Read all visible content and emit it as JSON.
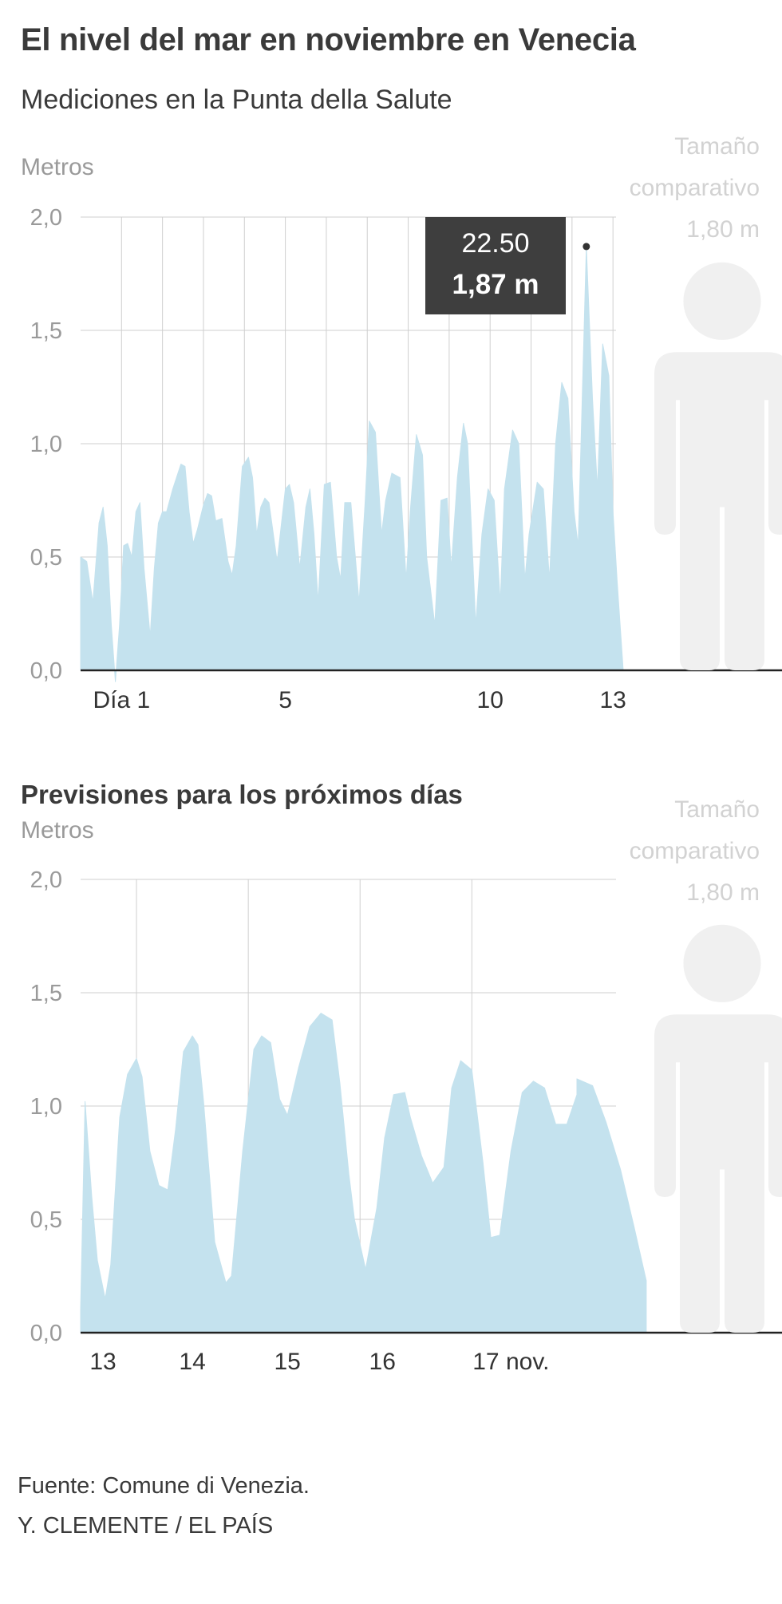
{
  "header": {
    "title": "El nivel del mar en noviembre en Venecia",
    "subtitle": "Mediciones en la Punta della Salute"
  },
  "colors": {
    "area": "#c4e2ee",
    "grid": "#cfcfcf",
    "axis": "#222222",
    "tick_text": "#9a9a9a",
    "x_text": "#333333",
    "silhouette": "#f0f0f0",
    "silhouette_text": "#d2d2d2",
    "tooltip_bg": "#3e3e3e",
    "tooltip_text": "#ffffff"
  },
  "icons": {
    "person": "person-silhouette-icon"
  },
  "chart_data": [
    {
      "type": "area",
      "ylabel": "Metros",
      "ylim": [
        0,
        2
      ],
      "xlim": [
        0,
        13.25
      ],
      "grid": true,
      "y_ticks": [
        {
          "value": 0,
          "label": "0,0"
        },
        {
          "value": 0.5,
          "label": "0,5"
        },
        {
          "value": 1,
          "label": "1,0"
        },
        {
          "value": 1.5,
          "label": "1,5"
        },
        {
          "value": 2,
          "label": "2,0"
        }
      ],
      "x_ticks": [
        {
          "value": 1,
          "label": "Día 1"
        },
        {
          "value": 5,
          "label": "5"
        },
        {
          "value": 10,
          "label": "10"
        },
        {
          "value": 13,
          "label": "13"
        }
      ],
      "x_gridlines": [
        1,
        2,
        3,
        4,
        5,
        6,
        7,
        8,
        9,
        10,
        11,
        12,
        13
      ],
      "x": [
        0.0,
        0.15,
        0.3,
        0.45,
        0.55,
        0.65,
        0.75,
        0.85,
        0.95,
        1.05,
        1.15,
        1.25,
        1.35,
        1.45,
        1.55,
        1.7,
        1.8,
        1.9,
        2.0,
        2.1,
        2.25,
        2.45,
        2.55,
        2.65,
        2.75,
        2.85,
        3.0,
        3.1,
        3.2,
        3.3,
        3.45,
        3.6,
        3.7,
        3.8,
        3.95,
        4.1,
        4.2,
        4.3,
        4.4,
        4.5,
        4.6,
        4.8,
        5.0,
        5.1,
        5.2,
        5.35,
        5.5,
        5.6,
        5.7,
        5.8,
        5.95,
        6.1,
        6.25,
        6.35,
        6.45,
        6.6,
        6.8,
        6.95,
        7.05,
        7.2,
        7.35,
        7.45,
        7.6,
        7.8,
        7.95,
        8.05,
        8.2,
        8.35,
        8.45,
        8.65,
        8.8,
        8.95,
        9.05,
        9.2,
        9.35,
        9.45,
        9.65,
        9.8,
        9.95,
        10.1,
        10.25,
        10.35,
        10.55,
        10.7,
        10.85,
        10.95,
        11.15,
        11.3,
        11.45,
        11.6,
        11.75,
        11.9,
        12.05,
        12.15,
        12.22,
        12.35,
        12.5,
        12.62,
        12.75,
        12.9,
        13.0,
        13.1,
        13.25
      ],
      "values": [
        0.5,
        0.48,
        0.3,
        0.65,
        0.72,
        0.55,
        0.2,
        -0.05,
        0.2,
        0.55,
        0.56,
        0.5,
        0.7,
        0.74,
        0.45,
        0.15,
        0.45,
        0.65,
        0.7,
        0.7,
        0.8,
        0.91,
        0.9,
        0.7,
        0.56,
        0.62,
        0.73,
        0.78,
        0.77,
        0.66,
        0.67,
        0.48,
        0.42,
        0.55,
        0.9,
        0.94,
        0.85,
        0.6,
        0.72,
        0.76,
        0.74,
        0.48,
        0.8,
        0.82,
        0.74,
        0.45,
        0.72,
        0.8,
        0.6,
        0.3,
        0.82,
        0.83,
        0.5,
        0.4,
        0.74,
        0.74,
        0.3,
        0.75,
        1.1,
        1.05,
        0.6,
        0.75,
        0.87,
        0.85,
        0.4,
        0.7,
        1.04,
        0.95,
        0.5,
        0.2,
        0.75,
        0.76,
        0.45,
        0.85,
        1.09,
        1.0,
        0.2,
        0.6,
        0.8,
        0.75,
        0.3,
        0.8,
        1.06,
        1.0,
        0.4,
        0.6,
        0.83,
        0.8,
        0.4,
        1.0,
        1.27,
        1.2,
        0.7,
        0.55,
        1.0,
        1.87,
        1.2,
        0.8,
        1.44,
        1.3,
        0.7,
        0.4,
        0.0
      ],
      "highlight": {
        "x": 12.35,
        "value": 1.87,
        "time": "22.50",
        "label": "1,87 m"
      },
      "comparison": {
        "label_line1": "Tamaño",
        "label_line2": "comparativo",
        "label_line3": "1,80 m",
        "height_m": 1.8
      }
    },
    {
      "type": "area",
      "title": "Previsiones para los próximos días",
      "ylabel": "Metros",
      "ylim": [
        0,
        2
      ],
      "xlim": [
        13,
        17.45
      ],
      "grid": true,
      "y_ticks": [
        {
          "value": 0,
          "label": "0,0"
        },
        {
          "value": 0.5,
          "label": "0,5"
        },
        {
          "value": 1,
          "label": "1,0"
        },
        {
          "value": 1.5,
          "label": "1,5"
        },
        {
          "value": 2,
          "label": "2,0"
        }
      ],
      "x_ticks": [
        {
          "value": 13.2,
          "label": "13"
        },
        {
          "value": 14.0,
          "label": "14"
        },
        {
          "value": 14.85,
          "label": "15"
        },
        {
          "value": 15.7,
          "label": "16"
        },
        {
          "value": 16.85,
          "label": "17 nov."
        }
      ],
      "x_gridlines": [
        13.5,
        14.5,
        15.5,
        16.5
      ],
      "x": [
        13.0,
        13.04,
        13.1,
        13.15,
        13.22,
        13.27,
        13.35,
        13.42,
        13.5,
        13.55,
        13.62,
        13.7,
        13.78,
        13.85,
        13.92,
        14.0,
        14.05,
        14.1,
        14.2,
        14.3,
        14.35,
        14.45,
        14.55,
        14.62,
        14.7,
        14.78,
        14.85,
        14.95,
        15.05,
        15.15,
        15.25,
        15.32,
        15.4,
        15.45,
        15.55,
        15.65,
        15.72,
        15.8,
        15.9,
        15.95,
        16.05,
        16.15,
        16.25,
        16.32,
        16.4,
        16.5,
        16.6,
        16.67,
        16.75,
        16.85,
        16.95,
        17.05,
        17.15,
        17.25,
        17.35,
        17.44,
        17.44
      ],
      "values": [
        0.1,
        1.02,
        0.6,
        0.32,
        0.15,
        0.3,
        0.95,
        1.14,
        1.21,
        1.13,
        0.8,
        0.65,
        0.63,
        0.9,
        1.24,
        1.31,
        1.27,
        1.02,
        0.4,
        0.22,
        0.25,
        0.8,
        1.25,
        1.31,
        1.28,
        1.03,
        0.96,
        1.17,
        1.35,
        1.41,
        1.38,
        1.1,
        0.7,
        0.5,
        0.28,
        0.55,
        0.86,
        1.05,
        1.06,
        0.95,
        0.78,
        0.66,
        0.73,
        1.08,
        1.2,
        1.16,
        0.75,
        0.42,
        0.43,
        0.8,
        1.06,
        1.11,
        1.08,
        0.92,
        0.92,
        1.05,
        1.12
      ],
      "values_tail": [
        1.09,
        0.93,
        0.72,
        0.47,
        0.23
      ],
      "x_tail": [
        17.58,
        17.7,
        17.83,
        17.95,
        18.06
      ],
      "comparison": {
        "label_line1": "Tamaño",
        "label_line2": "comparativo",
        "label_line3": "1,80 m",
        "height_m": 1.8
      }
    }
  ],
  "footer": {
    "source": "Fuente: Comune di Venezia.",
    "credit": "Y. CLEMENTE / EL PAÍS"
  }
}
